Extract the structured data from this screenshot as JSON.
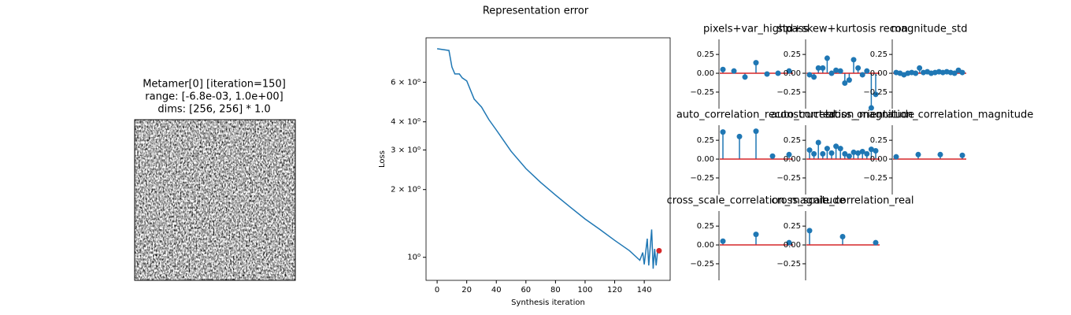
{
  "chart_data": [
    {
      "type": "image",
      "title_lines": [
        "Metamer[0] [iteration=150]",
        "range: [-6.8e-03, 1.0e+00]",
        "dims: [256, 256] * 1.0"
      ]
    },
    {
      "type": "line",
      "title": "Representation error",
      "xlabel": "Synthesis iteration",
      "ylabel": "Loss",
      "log_y": true,
      "color": "#1f77b4",
      "x": [
        0,
        8,
        10,
        12,
        15,
        17,
        20,
        25,
        30,
        35,
        40,
        50,
        60,
        70,
        80,
        90,
        100,
        110,
        120,
        130,
        137,
        139,
        140,
        142,
        143,
        145,
        146,
        147,
        148,
        149
      ],
      "values": [
        8.45,
        8.3,
        7.0,
        6.53,
        6.53,
        6.27,
        6.08,
        5.05,
        4.65,
        4.09,
        3.68,
        2.96,
        2.48,
        2.15,
        1.89,
        1.67,
        1.48,
        1.33,
        1.19,
        1.07,
        0.97,
        1.05,
        0.93,
        1.21,
        0.92,
        1.33,
        0.89,
        1.09,
        0.92,
        1.06
      ],
      "marker": {
        "x": 150,
        "y": 1.07,
        "color": "#d62728"
      },
      "xlim": [
        -7.5,
        157.5
      ],
      "xticks": [
        0,
        20,
        40,
        60,
        80,
        100,
        120,
        140
      ],
      "ylim": [
        0.79,
        9.45
      ],
      "yticks": [
        {
          "value": 1,
          "label": "10⁰"
        },
        {
          "value": 2,
          "label": "2 × 10⁰"
        },
        {
          "value": 3,
          "label": "3 × 10⁰"
        },
        {
          "value": 4,
          "label": "4 × 10⁰"
        },
        {
          "value": 6,
          "label": "6 × 10⁰"
        }
      ]
    },
    {
      "type": "stem",
      "title": "pixels+var_highpass",
      "color": "#1f77b4",
      "baseline_color": "#d62728",
      "ylim": [
        -0.47,
        0.45
      ],
      "yticks": [
        0.25,
        {
          "value": 0,
          "label": "0.00"
        },
        {
          "value": -0.25,
          "label": "−0.25"
        }
      ],
      "values": [
        0.05,
        0.03,
        -0.05,
        0.14,
        -0.01,
        0.0,
        0.03
      ]
    },
    {
      "type": "stem",
      "title": "std+skew+kurtosis recon",
      "color": "#1f77b4",
      "baseline_color": "#d62728",
      "ylim": [
        -0.47,
        0.45
      ],
      "yticks": [
        0.25,
        {
          "value": 0,
          "label": "0.00"
        },
        {
          "value": -0.25,
          "label": "−0.25"
        }
      ],
      "values": [
        -0.02,
        -0.05,
        0.07,
        0.07,
        0.2,
        0.0,
        0.04,
        0.03,
        -0.13,
        -0.09,
        0.18,
        0.07,
        -0.02,
        0.03,
        -0.46,
        -0.28
      ]
    },
    {
      "type": "stem",
      "title": "magnitude_std",
      "color": "#1f77b4",
      "baseline_color": "#d62728",
      "ylim": [
        -0.47,
        0.45
      ],
      "yticks": [
        0.25,
        {
          "value": 0,
          "label": "0.00"
        },
        {
          "value": -0.25,
          "label": "−0.25"
        }
      ],
      "values": [
        0.01,
        0.0,
        -0.02,
        0.0,
        0.01,
        0.0,
        0.07,
        0.01,
        0.02,
        0.0,
        0.01,
        0.02,
        0.01,
        0.02,
        0.01,
        0.0,
        0.04,
        0.01
      ]
    },
    {
      "type": "stem",
      "title": "auto_correlation_reconstructed",
      "color": "#1f77b4",
      "baseline_color": "#d62728",
      "ylim": [
        -0.47,
        0.45
      ],
      "yticks": [
        0.25,
        {
          "value": 0,
          "label": "0.00"
        },
        {
          "value": -0.25,
          "label": "−0.25"
        }
      ],
      "values": [
        0.36,
        0.3,
        0.37,
        0.04,
        0.06
      ]
    },
    {
      "type": "stem",
      "title": "auto_correlation_magnitude",
      "color": "#1f77b4",
      "baseline_color": "#d62728",
      "ylim": [
        -0.47,
        0.45
      ],
      "yticks": [
        0.25,
        {
          "value": 0,
          "label": "0.00"
        },
        {
          "value": -0.25,
          "label": "−0.25"
        }
      ],
      "values": [
        0.12,
        0.07,
        0.22,
        0.07,
        0.14,
        0.08,
        0.17,
        0.14,
        0.07,
        0.04,
        0.09,
        0.08,
        0.1,
        0.07,
        0.13,
        0.11
      ]
    },
    {
      "type": "stem",
      "title": "cross_orientation_correlation_magnitude",
      "color": "#1f77b4",
      "baseline_color": "#d62728",
      "ylim": [
        -0.47,
        0.45
      ],
      "yticks": [
        0.25,
        {
          "value": 0,
          "label": "0.00"
        },
        {
          "value": -0.25,
          "label": "−0.25"
        }
      ],
      "values": [
        0.03,
        0.06,
        0.06,
        0.05
      ]
    },
    {
      "type": "stem",
      "title": "cross_scale_correlation_magnitude",
      "color": "#1f77b4",
      "baseline_color": "#d62728",
      "ylim": [
        -0.47,
        0.45
      ],
      "yticks": [
        0.25,
        {
          "value": 0,
          "label": "0.00"
        },
        {
          "value": -0.25,
          "label": "−0.25"
        }
      ],
      "values": [
        0.05,
        0.14,
        0.03
      ]
    },
    {
      "type": "stem",
      "title": "cross_scale_correlation_real",
      "color": "#1f77b4",
      "baseline_color": "#d62728",
      "ylim": [
        -0.47,
        0.45
      ],
      "yticks": [
        0.25,
        {
          "value": 0,
          "label": "0.00"
        },
        {
          "value": -0.25,
          "label": "−0.25"
        }
      ],
      "values": [
        0.19,
        0.11,
        0.03
      ]
    }
  ]
}
